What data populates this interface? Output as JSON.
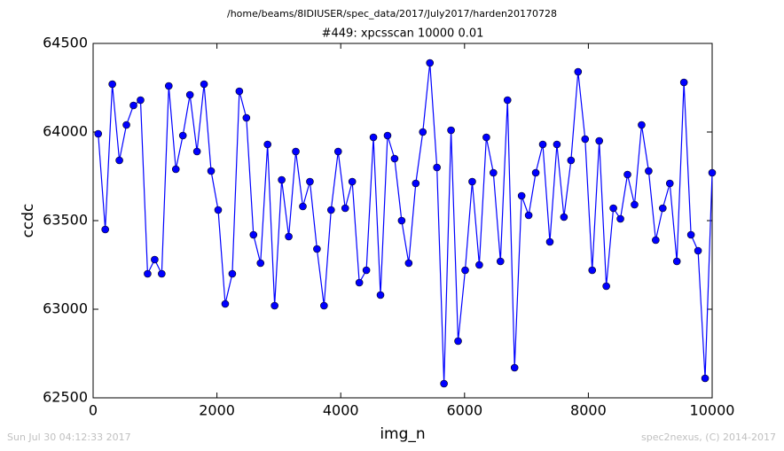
{
  "chart_data": {
    "type": "line",
    "suptitle": "/home/beams/8IDIUSER/spec_data/2017/July2017/harden20170728",
    "title": "#449: xpcsscan 10000 0.01",
    "xlabel": "img_n",
    "ylabel": "ccdc",
    "footer_left": "Sun Jul 30 04:12:33 2017",
    "footer_right": "spec2nexus, (C) 2014-2017",
    "x": [
      82,
      196,
      310,
      424,
      538,
      652,
      766,
      880,
      994,
      1108,
      1222,
      1336,
      1450,
      1564,
      1678,
      1792,
      1906,
      2020,
      2134,
      2248,
      2362,
      2476,
      2590,
      2704,
      2818,
      2932,
      3046,
      3160,
      3274,
      3388,
      3502,
      3616,
      3730,
      3844,
      3958,
      4072,
      4186,
      4300,
      4414,
      4528,
      4642,
      4756,
      4870,
      4984,
      5098,
      5212,
      5326,
      5440,
      5554,
      5668,
      5782,
      5896,
      6010,
      6124,
      6238,
      6352,
      6466,
      6580,
      6694,
      6808,
      6922,
      7036,
      7150,
      7264,
      7378,
      7492,
      7606,
      7720,
      7834,
      7948,
      8062,
      8176,
      8290,
      8404,
      8518,
      8632,
      8746,
      8860,
      8974,
      9088,
      9202,
      9316,
      9430,
      9544,
      9658,
      9772,
      9886,
      10000
    ],
    "series": [
      {
        "name": "ccdc",
        "color": "#0000ff",
        "values": [
          63990,
          63450,
          64270,
          63840,
          64040,
          64150,
          64180,
          63200,
          63280,
          63200,
          64260,
          63790,
          63980,
          64210,
          63890,
          64270,
          63780,
          63560,
          63030,
          63200,
          64230,
          64080,
          63420,
          63260,
          63930,
          63020,
          63730,
          63410,
          63890,
          63580,
          63720,
          63340,
          63020,
          63560,
          63890,
          63570,
          63720,
          63150,
          63220,
          63970,
          63080,
          63980,
          63850,
          63500,
          63260,
          63710,
          64000,
          64390,
          63800,
          62580,
          64010,
          62820,
          63220,
          63720,
          63250,
          63970,
          63770,
          63270,
          64180,
          62670,
          63640,
          63530,
          63770,
          63930,
          63380,
          63930,
          63520,
          63840,
          64340,
          63960,
          63220,
          63950,
          63130,
          63570,
          63510,
          63760,
          63590,
          64040,
          63780,
          63390,
          63570,
          63710,
          63270,
          64280,
          63420,
          63330,
          62610,
          63770
        ]
      }
    ],
    "xlim": [
      0,
      10000
    ],
    "xticks": [
      0,
      2000,
      4000,
      6000,
      8000,
      10000
    ],
    "ylim": [
      62500,
      64500
    ],
    "yticks": [
      62500,
      63000,
      63500,
      64000,
      64500
    ],
    "markers": true,
    "grid": false
  }
}
